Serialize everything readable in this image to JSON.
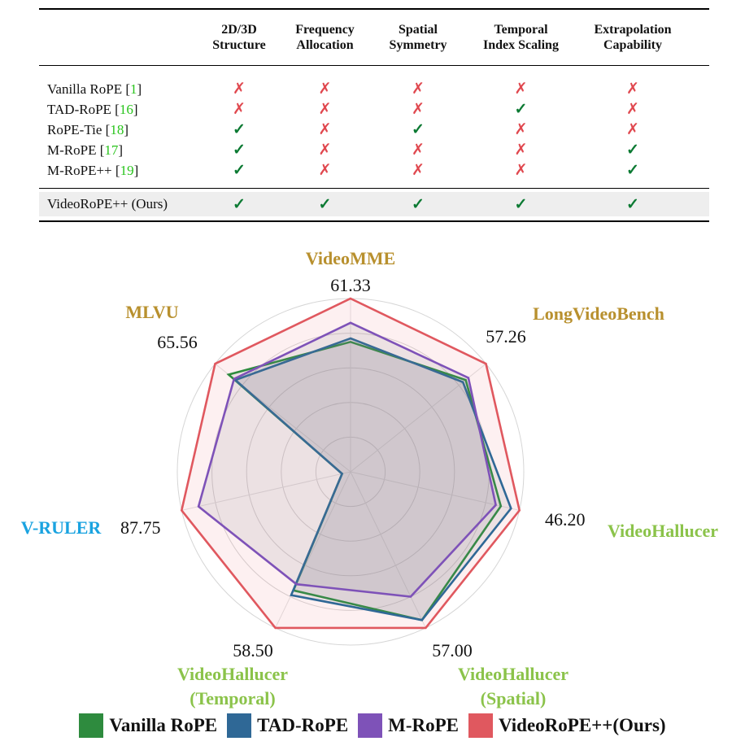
{
  "table": {
    "columns": [
      "2D/3D\nStructure",
      "Frequency\nAllocation",
      "Spatial\nSymmetry",
      "Temporal\nIndex Scaling",
      "Extrapolation\nCapability"
    ],
    "rows": [
      {
        "name": "Vanilla RoPE",
        "ref": "1",
        "marks": [
          false,
          false,
          false,
          false,
          false
        ]
      },
      {
        "name": "TAD-RoPE",
        "ref": "16",
        "marks": [
          false,
          false,
          false,
          true,
          false
        ]
      },
      {
        "name": "RoPE-Tie",
        "ref": "18",
        "marks": [
          true,
          false,
          true,
          false,
          false
        ]
      },
      {
        "name": "M-RoPE",
        "ref": "17",
        "marks": [
          true,
          false,
          false,
          false,
          true
        ]
      },
      {
        "name": "M-RoPE++",
        "ref": "19",
        "marks": [
          true,
          false,
          false,
          false,
          true
        ]
      }
    ],
    "ours": {
      "name": "VideoRoPE++ (Ours)",
      "marks": [
        true,
        true,
        true,
        true,
        true
      ]
    },
    "check_symbol": "✓",
    "cross_symbol": "✗",
    "colors": {
      "check": "#0c7a33",
      "cross": "#e0484f",
      "ref": "#29c41c",
      "highlight": "#eeeeee"
    }
  },
  "chart_data": {
    "type": "radar",
    "axes": [
      {
        "title": [
          "VideoMME"
        ],
        "max_label": "61.33",
        "color": "#b8902e"
      },
      {
        "title": [
          "LongVideoBench"
        ],
        "max_label": "57.26",
        "color": "#b8902e"
      },
      {
        "title": [
          "VideoHallucer"
        ],
        "max_label": "46.20",
        "color": "#8bc34a"
      },
      {
        "title": [
          "VideoHallucer",
          "(Spatial)"
        ],
        "max_label": "57.00",
        "color": "#8bc34a"
      },
      {
        "title": [
          "VideoHallucer",
          "(Temporal)"
        ],
        "max_label": "58.50",
        "color": "#8bc34a"
      },
      {
        "title": [
          "V-RULER"
        ],
        "max_label": "87.75",
        "color": "#1aa3e0"
      },
      {
        "title": [
          "MLVU"
        ],
        "max_label": "65.56",
        "color": "#b8902e"
      }
    ],
    "value_scale": "fraction of each axis maximum",
    "rings": 5,
    "series": [
      {
        "name": "VideoRoPE++(Ours)",
        "color": "#e0585f",
        "fill": "rgba(236,92,100,0.09)",
        "values": [
          1.0,
          1.0,
          1.0,
          1.0,
          1.0,
          1.0,
          1.0
        ]
      },
      {
        "name": "Vanilla RoPE",
        "color": "#2e8b3e",
        "fill": "rgba(120,120,140,0.13)",
        "values": [
          0.75,
          0.85,
          0.89,
          0.95,
          0.76,
          0.05,
          0.9
        ]
      },
      {
        "name": "TAD-RoPE",
        "color": "#2f6896",
        "fill": "rgba(120,120,140,0.13)",
        "values": [
          0.77,
          0.83,
          0.95,
          0.95,
          0.79,
          0.05,
          0.85
        ]
      },
      {
        "name": "M-RoPE",
        "color": "#7e52b8",
        "fill": "rgba(120,120,140,0.13)",
        "values": [
          0.86,
          0.87,
          0.86,
          0.8,
          0.72,
          0.9,
          0.86
        ]
      }
    ],
    "legend": {
      "position": "bottom"
    }
  }
}
